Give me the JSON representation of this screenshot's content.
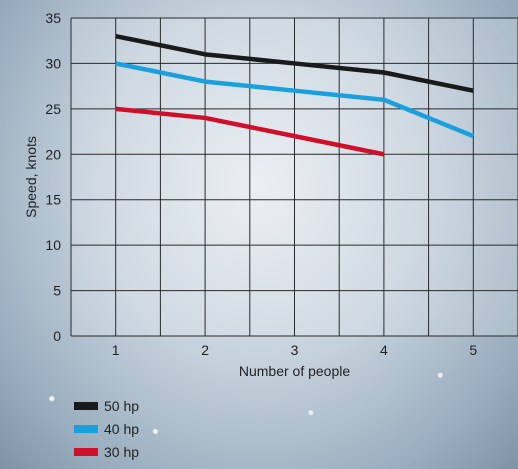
{
  "chart_data": {
    "type": "line",
    "title": "",
    "xlabel": "Number of people",
    "ylabel": "Speed, knots",
    "x": [
      1,
      2,
      3,
      4,
      5
    ],
    "xlim": [
      0.5,
      5.5
    ],
    "ylim": [
      0,
      35
    ],
    "yticks": [
      0,
      5,
      10,
      15,
      20,
      25,
      30,
      35
    ],
    "xticks": [
      1,
      2,
      3,
      4,
      5
    ],
    "grid": true,
    "legend_position": "bottom-left",
    "series": [
      {
        "name": "50 hp",
        "color": "#1a1a1a",
        "values": [
          33,
          31,
          30,
          29,
          27
        ]
      },
      {
        "name": "40 hp",
        "color": "#1aa0dc",
        "values": [
          30,
          28,
          27,
          26,
          22
        ]
      },
      {
        "name": "30 hp",
        "color": "#d0102a",
        "values": [
          25,
          24,
          22,
          20,
          null
        ]
      }
    ]
  }
}
